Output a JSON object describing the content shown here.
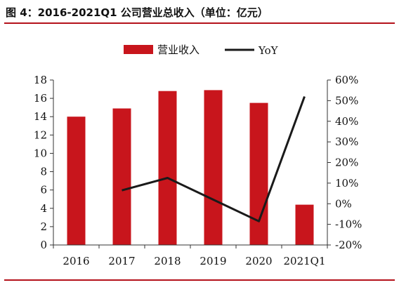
{
  "figure": {
    "title": "图 4：2016-2021Q1 公司营业总收入（单位：亿元）"
  },
  "colors": {
    "bar": "#c8151c",
    "line": "#1a1a1a",
    "rule": "#b4121b",
    "axis": "#333333"
  },
  "chart_data": {
    "type": "bar",
    "title": "",
    "categories": [
      "2016",
      "2017",
      "2018",
      "2019",
      "2020",
      "2021Q1"
    ],
    "series": [
      {
        "name": "营业收入",
        "type": "bar",
        "axis": "left",
        "values": [
          14.0,
          14.9,
          16.8,
          16.9,
          15.5,
          4.4
        ]
      },
      {
        "name": "YoY",
        "type": "line",
        "axis": "right",
        "values": [
          null,
          6.5,
          12.5,
          2.0,
          -8.5,
          52.0
        ]
      }
    ],
    "ylim": [
      0,
      18
    ],
    "yticks": [
      0,
      2,
      4,
      6,
      8,
      10,
      12,
      14,
      16,
      18
    ],
    "y2lim": [
      -20,
      60
    ],
    "y2ticks": [
      -20,
      -10,
      0,
      10,
      20,
      30,
      40,
      50,
      60
    ],
    "y2_tick_labels": [
      "-20%",
      "-10%",
      "0%",
      "10%",
      "20%",
      "30%",
      "40%",
      "50%",
      "60%"
    ],
    "legend_position": "top-center",
    "grid": false
  }
}
